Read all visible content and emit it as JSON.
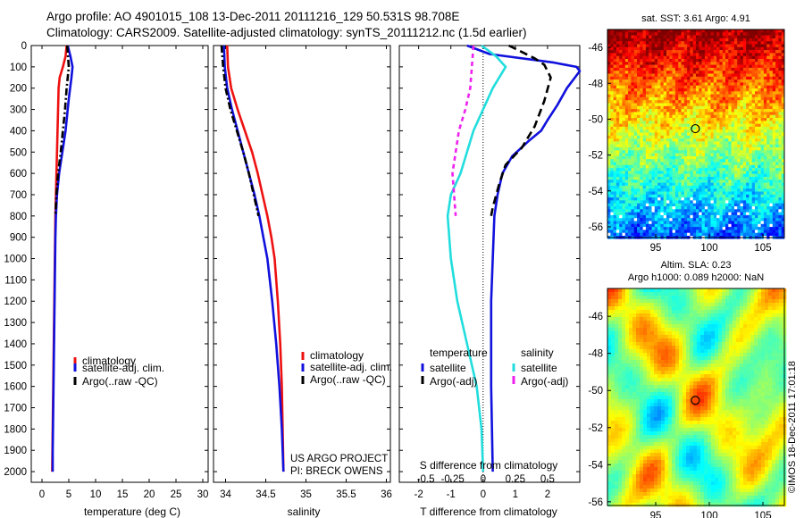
{
  "header": {
    "line1": "Argo profile: AO 4901015_108 13-Dec-2011 20111216_129 50.531S 98.708E",
    "line2": "Climatology: CARS2009. Satellite-adjusted climatology: synTS_20111212.nc (1.5d earlier)"
  },
  "footer": {
    "project": "US ARGO PROJECT",
    "pi": "PI: BRECK OWENS",
    "imos": "©IMOS 18-Dec-2011 17:01:18"
  },
  "colors": {
    "climatology": "#ee1111",
    "satellite": "#1111dd",
    "argo": "#000000",
    "sal_satellite": "#22dddd",
    "sal_argo": "#ee22ee"
  },
  "chart_data": [
    {
      "type": "line",
      "panel": "temperature",
      "xlabel": "temperature (deg C)",
      "ylabel": "",
      "xlim": [
        -2,
        31
      ],
      "ylim": [
        2050,
        0
      ],
      "y_reversed": true,
      "xticks": [
        0,
        5,
        10,
        15,
        20,
        25,
        30
      ],
      "xticklabels": [
        "0",
        "5",
        "10",
        "15",
        "20",
        "25",
        "30"
      ],
      "yticks": [
        0,
        100,
        200,
        300,
        400,
        500,
        600,
        700,
        800,
        900,
        1000,
        1100,
        1200,
        1300,
        1400,
        1500,
        1600,
        1700,
        1800,
        1900,
        2000
      ],
      "yticklabels": [
        "0",
        "100",
        "200",
        "300",
        "400",
        "500",
        "600",
        "700",
        "800",
        "900",
        "1000",
        "1100",
        "1200",
        "1300",
        "1400",
        "1500",
        "1600",
        "1700",
        "1800",
        "1900",
        "2000"
      ],
      "legend": [
        "climatology",
        "satellite-adj. clim.",
        "Argo(..raw -QC)"
      ],
      "series": [
        {
          "name": "climatology",
          "color": "#ee1111",
          "dash": "",
          "points": [
            [
              4.6,
              0
            ],
            [
              4.4,
              50
            ],
            [
              3.9,
              100
            ],
            [
              3.3,
              150
            ],
            [
              3.1,
              200
            ],
            [
              3.0,
              300
            ],
            [
              2.9,
              400
            ],
            [
              2.8,
              500
            ],
            [
              2.7,
              600
            ],
            [
              2.6,
              700
            ],
            [
              2.5,
              800
            ],
            [
              2.4,
              1000
            ],
            [
              2.3,
              1200
            ],
            [
              2.2,
              1400
            ],
            [
              2.1,
              1600
            ],
            [
              2.0,
              1800
            ],
            [
              1.9,
              2000
            ]
          ]
        },
        {
          "name": "satellite-adj. clim.",
          "color": "#1111dd",
          "dash": "",
          "points": [
            [
              4.8,
              0
            ],
            [
              5.3,
              50
            ],
            [
              5.7,
              100
            ],
            [
              5.5,
              150
            ],
            [
              5.0,
              250
            ],
            [
              4.4,
              400
            ],
            [
              3.8,
              500
            ],
            [
              3.2,
              600
            ],
            [
              2.8,
              700
            ],
            [
              2.6,
              800
            ],
            [
              2.5,
              900
            ],
            [
              2.4,
              1100
            ],
            [
              2.3,
              1300
            ],
            [
              2.2,
              1500
            ],
            [
              2.1,
              1700
            ],
            [
              2.0,
              1900
            ],
            [
              2.0,
              2000
            ]
          ]
        },
        {
          "name": "Argo(..raw -QC)",
          "color": "#000000",
          "dash": "8,3,2,3",
          "points": [
            [
              4.7,
              0
            ],
            [
              5.0,
              100
            ],
            [
              4.6,
              200
            ],
            [
              4.3,
              300
            ],
            [
              3.9,
              400
            ],
            [
              3.5,
              500
            ],
            [
              3.0,
              600
            ],
            [
              2.7,
              700
            ],
            [
              2.5,
              800
            ]
          ]
        }
      ]
    },
    {
      "type": "line",
      "panel": "salinity",
      "xlabel": "salinity",
      "ylabel": "",
      "xlim": [
        33.85,
        36.05
      ],
      "ylim": [
        2050,
        0
      ],
      "y_reversed": true,
      "xticks": [
        34,
        34.5,
        35,
        35.5,
        36
      ],
      "xticklabels": [
        "34",
        "34.5",
        "35",
        "35.5",
        "36"
      ],
      "legend": [
        "climatology",
        "satellite-adj. clim.",
        "Argo(..raw -QC)"
      ],
      "series": [
        {
          "name": "climatology",
          "color": "#ee1111",
          "dash": "",
          "points": [
            [
              34.02,
              0
            ],
            [
              34.03,
              100
            ],
            [
              34.07,
              200
            ],
            [
              34.15,
              300
            ],
            [
              34.24,
              400
            ],
            [
              34.33,
              500
            ],
            [
              34.4,
              600
            ],
            [
              34.46,
              700
            ],
            [
              34.52,
              800
            ],
            [
              34.57,
              900
            ],
            [
              34.61,
              1000
            ],
            [
              34.65,
              1200
            ],
            [
              34.68,
              1400
            ],
            [
              34.7,
              1600
            ],
            [
              34.71,
              1800
            ],
            [
              34.72,
              2000
            ]
          ]
        },
        {
          "name": "satellite-adj. clim.",
          "color": "#1111dd",
          "dash": "",
          "points": [
            [
              33.98,
              0
            ],
            [
              33.99,
              100
            ],
            [
              34.02,
              200
            ],
            [
              34.08,
              300
            ],
            [
              34.15,
              400
            ],
            [
              34.22,
              500
            ],
            [
              34.29,
              600
            ],
            [
              34.36,
              700
            ],
            [
              34.42,
              800
            ],
            [
              34.47,
              900
            ],
            [
              34.52,
              1000
            ],
            [
              34.58,
              1200
            ],
            [
              34.63,
              1400
            ],
            [
              34.67,
              1600
            ],
            [
              34.7,
              1800
            ],
            [
              34.72,
              2000
            ]
          ]
        },
        {
          "name": "Argo(..raw -QC)",
          "color": "#000000",
          "dash": "8,3,2,3",
          "points": [
            [
              33.95,
              0
            ],
            [
              33.97,
              100
            ],
            [
              34.0,
              200
            ],
            [
              34.06,
              300
            ],
            [
              34.14,
              400
            ],
            [
              34.22,
              500
            ],
            [
              34.29,
              600
            ],
            [
              34.35,
              700
            ],
            [
              34.41,
              800
            ]
          ]
        }
      ]
    },
    {
      "type": "line",
      "panel": "difference",
      "xlabel": "T difference from climatology",
      "xlabel_top": "S difference from climatology",
      "xlim": [
        -2.6,
        3.0
      ],
      "ylim": [
        2050,
        0
      ],
      "y_reversed": true,
      "xticks": [
        -2,
        -1,
        0,
        1,
        2
      ],
      "xticklabels": [
        "-2",
        "-1",
        "0",
        "1",
        "2"
      ],
      "sticks": [
        "-0.5",
        "-0.25",
        "0",
        "0.25",
        "0.5"
      ],
      "legend_headers": [
        "temperature",
        "salinity"
      ],
      "legend": [
        "satellite",
        "Argo(-adj)",
        "satellite",
        "Argo(-adj)"
      ],
      "series": [
        {
          "name": "satellite",
          "color": "#1111dd",
          "dash": "",
          "points": [
            [
              -0.5,
              0
            ],
            [
              0.2,
              40
            ],
            [
              2.2,
              80
            ],
            [
              2.9,
              100
            ],
            [
              3.0,
              120
            ],
            [
              2.6,
              200
            ],
            [
              2.3,
              280
            ],
            [
              2.0,
              350
            ],
            [
              1.8,
              400
            ],
            [
              1.4,
              450
            ],
            [
              0.9,
              520
            ],
            [
              0.6,
              600
            ],
            [
              0.45,
              700
            ],
            [
              0.35,
              800
            ],
            [
              0.3,
              1000
            ],
            [
              0.25,
              1200
            ],
            [
              0.25,
              1600
            ],
            [
              0.3,
              2000
            ]
          ]
        },
        {
          "name": "Argo(-adj)",
          "color": "#000000",
          "dash": "9,5",
          "points": [
            [
              0.8,
              0
            ],
            [
              1.6,
              60
            ],
            [
              1.9,
              90
            ],
            [
              2.1,
              150
            ],
            [
              1.9,
              260
            ],
            [
              1.6,
              380
            ],
            [
              1.2,
              480
            ],
            [
              0.7,
              560
            ],
            [
              0.5,
              650
            ],
            [
              0.3,
              760
            ],
            [
              0.25,
              800
            ]
          ]
        },
        {
          "name": "satellite",
          "color": "#22dddd",
          "dash": "",
          "points": [
            [
              -0.05,
              0
            ],
            [
              0.4,
              50
            ],
            [
              0.7,
              100
            ],
            [
              0.3,
              200
            ],
            [
              -0.3,
              400
            ],
            [
              -0.7,
              600
            ],
            [
              -1.0,
              700
            ],
            [
              -1.1,
              800
            ],
            [
              -1.0,
              1000
            ],
            [
              -0.8,
              1200
            ],
            [
              -0.5,
              1400
            ],
            [
              -0.2,
              1600
            ],
            [
              -0.05,
              1800
            ],
            [
              0.0,
              2000
            ]
          ]
        },
        {
          "name": "Argo(-adj)",
          "color": "#ee22ee",
          "dash": "5,4",
          "points": [
            [
              -0.3,
              0
            ],
            [
              -0.35,
              100
            ],
            [
              -0.4,
              200
            ],
            [
              -0.55,
              300
            ],
            [
              -0.75,
              400
            ],
            [
              -0.85,
              500
            ],
            [
              -0.95,
              600
            ],
            [
              -0.9,
              700
            ],
            [
              -0.85,
              800
            ]
          ]
        }
      ]
    },
    {
      "type": "heatmap",
      "panel": "sst-map",
      "title": "sat. SST: 3.61  Argo: 4.91",
      "xticklabels": [
        "95",
        "100",
        "105"
      ],
      "xticks": [
        95,
        100,
        105
      ],
      "xlim": [
        90.5,
        107
      ],
      "ylim": [
        -56.6,
        -45
      ],
      "yticks": [
        -46,
        -48,
        -50,
        -52,
        -54,
        -56
      ],
      "yticklabels": [
        "-46",
        "-48",
        "-50",
        "-52",
        "-54",
        "-56"
      ],
      "marker": [
        98.7,
        -50.53
      ]
    },
    {
      "type": "heatmap",
      "panel": "sla-map",
      "title": "Altim. SLA: 0.23",
      "subtitle": "Argo h1000: 0.089  h2000: NaN",
      "xticks": [
        95,
        100,
        105
      ],
      "xticklabels": [
        "95",
        "100",
        "105"
      ],
      "xlim": [
        90.5,
        107
      ],
      "ylim": [
        -56.2,
        -44.5
      ],
      "yticks": [
        -46,
        -48,
        -50,
        -52,
        -54,
        -56
      ],
      "yticklabels": [
        "-46",
        "-48",
        "-50",
        "-52",
        "-54",
        "-56"
      ],
      "marker": [
        98.7,
        -50.53
      ]
    }
  ]
}
